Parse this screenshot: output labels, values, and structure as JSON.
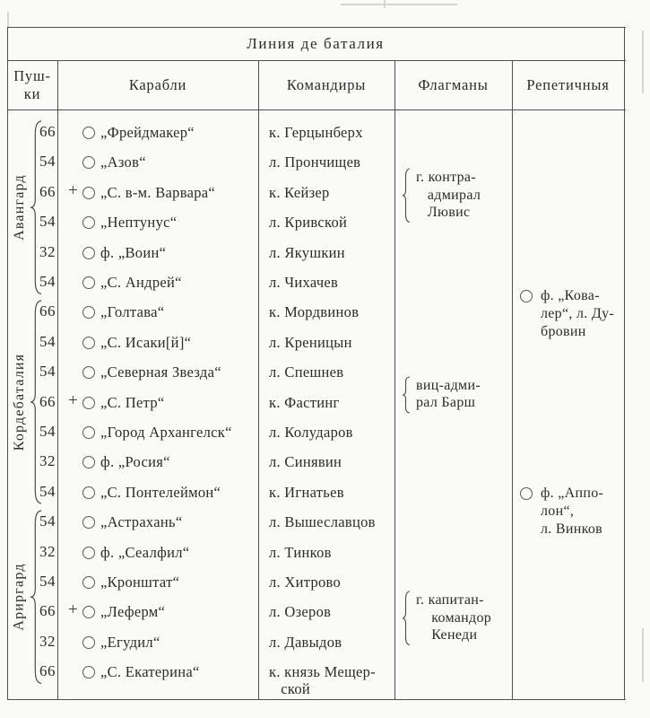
{
  "title": "Линия де баталия",
  "columns": [
    {
      "id": "guns",
      "label": "Пуш-\nки"
    },
    {
      "id": "ships",
      "label": "Карабли"
    },
    {
      "id": "commanders",
      "label": "Командиры"
    },
    {
      "id": "flagmans",
      "label": "Флагманы"
    },
    {
      "id": "repeaters",
      "label": "Репетичныя"
    }
  ],
  "icons": {
    "flagship_cross": "+"
  },
  "groups": [
    {
      "name": "Авангард",
      "ships": [
        {
          "guns": "66",
          "flag": false,
          "name": "„Фрейдмакер“",
          "commander": "к. Герцынберх"
        },
        {
          "guns": "54",
          "flag": false,
          "name": "„Азов“",
          "commander": "л. Прончищев"
        },
        {
          "guns": "66",
          "flag": true,
          "name": "„С. в-м. Варвара“",
          "commander": "к. Кейзер"
        },
        {
          "guns": "54",
          "flag": false,
          "name": "„Нептунус“",
          "commander": "л. Кривской"
        },
        {
          "guns": "32",
          "flag": false,
          "name": "ф. „Воин“",
          "commander": "л. Якушкин"
        },
        {
          "guns": "54",
          "flag": false,
          "name": "„С. Андрей“",
          "commander": "л. Чихачев"
        }
      ],
      "flagman": {
        "lines": [
          "г. контра-",
          "   адмирал",
          "   Лювис"
        ],
        "center_row": 2.6
      }
    },
    {
      "name": "Кордебаталия",
      "ships": [
        {
          "guns": "66",
          "flag": false,
          "name": "„Голтава“",
          "commander": "к. Мордвинов"
        },
        {
          "guns": "54",
          "flag": false,
          "name": "„С. Исаки[й]“",
          "commander": "л. Креницын"
        },
        {
          "guns": "54",
          "flag": false,
          "name": "„Северная Звезда“",
          "commander": "л. Спешнев"
        },
        {
          "guns": "66",
          "flag": true,
          "name": "„С. Петр“",
          "commander": "к. Фастинг"
        },
        {
          "guns": "54",
          "flag": false,
          "name": "„Город Архангелск“",
          "commander": "л. Колударов"
        },
        {
          "guns": "32",
          "flag": false,
          "name": "ф. „Росия“",
          "commander": "л. Синявин"
        },
        {
          "guns": "54",
          "flag": false,
          "name": "„С. Понтелеймон“",
          "commander": "к. Игнатьев"
        }
      ],
      "flagman": {
        "lines": [
          "виц-адми-",
          "рал Барш"
        ],
        "center_row": 9.25
      }
    },
    {
      "name": "Ариргард",
      "ships": [
        {
          "guns": "54",
          "flag": false,
          "name": "„Астрахань“",
          "commander": "л. Вышеславцов"
        },
        {
          "guns": "32",
          "flag": false,
          "name": "ф. „Сеалфил“",
          "commander": "л. Тинков"
        },
        {
          "guns": "54",
          "flag": false,
          "name": "„Кронштат“",
          "commander": "л. Хитрово"
        },
        {
          "guns": "66",
          "flag": true,
          "name": "„Леферм“",
          "commander": "л. Озеров"
        },
        {
          "guns": "32",
          "flag": false,
          "name": "„Егудил“",
          "commander": "л. Давыдов"
        },
        {
          "guns": "66",
          "flag": false,
          "name": "„С. Екатерина“",
          "commander": "к. князь Мещер-\n   ской"
        }
      ],
      "flagman": {
        "lines": [
          "г. капитан-",
          "    командор",
          "    Кенеди"
        ],
        "center_row": 16.7
      }
    }
  ],
  "repeaters": [
    {
      "lines": [
        "ф. „Кова-",
        "лер“, л. Ду-",
        "бровин"
      ],
      "center_row": 6.55
    },
    {
      "lines": [
        "ф. „Аппо-",
        "лон“,",
        "л. Винков"
      ],
      "center_row": 13.15
    }
  ]
}
